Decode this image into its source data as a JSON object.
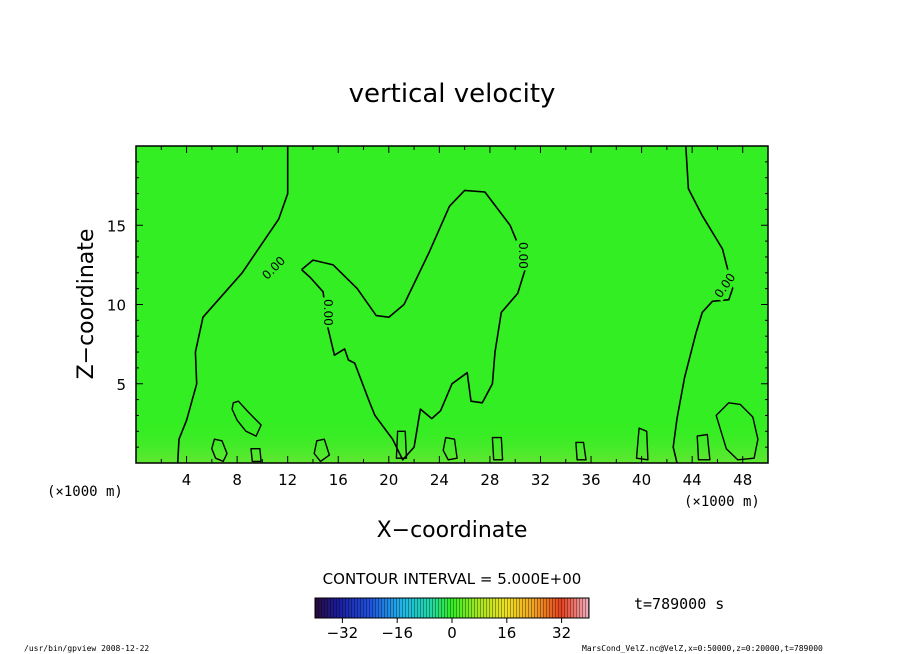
{
  "chart_data": {
    "type": "heatmap",
    "title": "vertical velocity",
    "xlabel": "X−coordinate",
    "ylabel": "Z−coordinate",
    "x_unit": "(×1000 m)",
    "x_unit_right": "(×1000 m)",
    "xlim": [
      0,
      50
    ],
    "ylim": [
      0,
      20
    ],
    "x_ticks": [
      "4",
      "8",
      "12",
      "16",
      "20",
      "24",
      "28",
      "32",
      "36",
      "40",
      "44",
      "48"
    ],
    "x_tick_values": [
      4,
      8,
      12,
      16,
      20,
      24,
      28,
      32,
      36,
      40,
      44,
      48
    ],
    "y_ticks": [
      "5",
      "10",
      "15"
    ],
    "y_tick_values": [
      5,
      10,
      15
    ],
    "contour_interval_text": "CONTOUR INTERVAL = 5.000E+00",
    "contour_level": 0,
    "contour_labels": [
      "0.00",
      "0.00",
      "0.00",
      "0.00"
    ],
    "field_value_dominant": 0,
    "colorbar": {
      "min": -40,
      "max": 40,
      "ticks": [
        "−32",
        "−16",
        "0",
        "16",
        "32"
      ],
      "tick_values": [
        -32,
        -16,
        0,
        16,
        32
      ]
    },
    "contours": [
      [
        [
          12.0,
          20.0
        ],
        [
          12.0,
          17.0
        ],
        [
          11.3,
          15.4
        ],
        [
          8.4,
          12.0
        ],
        [
          5.3,
          9.2
        ],
        [
          4.7,
          7.0
        ],
        [
          4.8,
          5.0
        ],
        [
          4.0,
          2.7
        ],
        [
          3.4,
          1.5
        ],
        [
          3.3,
          0.0
        ]
      ],
      [
        [
          13.1,
          12.2
        ],
        [
          14.0,
          12.8
        ],
        [
          15.6,
          12.5
        ],
        [
          17.5,
          11.0
        ],
        [
          19.0,
          9.3
        ],
        [
          20.0,
          9.2
        ],
        [
          21.2,
          10.0
        ],
        [
          23.2,
          13.3
        ],
        [
          24.8,
          16.2
        ],
        [
          26.0,
          17.2
        ],
        [
          27.6,
          17.1
        ],
        [
          29.6,
          15.0
        ],
        [
          30.9,
          12.5
        ],
        [
          30.2,
          10.7
        ],
        [
          28.9,
          9.5
        ],
        [
          28.4,
          7.0
        ],
        [
          28.2,
          5.0
        ],
        [
          27.4,
          3.8
        ],
        [
          26.5,
          3.9
        ],
        [
          26.2,
          5.7
        ],
        [
          25.0,
          5.0
        ],
        [
          24.1,
          3.3
        ],
        [
          23.4,
          2.8
        ],
        [
          22.5,
          3.4
        ],
        [
          22.0,
          1.0
        ],
        [
          21.1,
          0.2
        ],
        [
          20.3,
          1.5
        ],
        [
          18.9,
          3.0
        ],
        [
          18.5,
          3.8
        ],
        [
          17.3,
          6.3
        ],
        [
          16.8,
          6.5
        ],
        [
          16.5,
          7.2
        ],
        [
          15.7,
          6.8
        ],
        [
          15.1,
          8.8
        ],
        [
          14.8,
          10.8
        ],
        [
          13.8,
          11.7
        ],
        [
          13.1,
          12.2
        ]
      ],
      [
        [
          43.5,
          20.0
        ],
        [
          43.7,
          17.3
        ],
        [
          44.8,
          15.6
        ],
        [
          46.4,
          13.5
        ],
        [
          47.2,
          11.0
        ],
        [
          46.9,
          10.3
        ],
        [
          45.6,
          10.2
        ],
        [
          44.8,
          9.5
        ],
        [
          44.3,
          8.2
        ],
        [
          43.4,
          5.4
        ],
        [
          42.8,
          2.8
        ],
        [
          42.5,
          1.0
        ],
        [
          42.8,
          0.0
        ]
      ]
    ],
    "closed_cells": [
      [
        [
          7.7,
          3.8
        ],
        [
          8.1,
          3.9
        ],
        [
          8.9,
          3.2
        ],
        [
          9.9,
          2.4
        ],
        [
          9.5,
          1.7
        ],
        [
          8.7,
          2.0
        ],
        [
          8.0,
          2.7
        ],
        [
          7.6,
          3.4
        ]
      ],
      [
        [
          6.2,
          1.5
        ],
        [
          6.8,
          1.4
        ],
        [
          7.2,
          0.6
        ],
        [
          6.9,
          0.1
        ],
        [
          6.3,
          0.3
        ],
        [
          6.0,
          0.9
        ]
      ],
      [
        [
          9.1,
          0.9
        ],
        [
          9.8,
          0.9
        ],
        [
          9.9,
          0.1
        ],
        [
          9.2,
          0.1
        ]
      ],
      [
        [
          14.3,
          1.4
        ],
        [
          14.9,
          1.5
        ],
        [
          15.3,
          0.5
        ],
        [
          14.6,
          0.1
        ],
        [
          14.1,
          0.6
        ]
      ],
      [
        [
          20.7,
          2.0
        ],
        [
          21.3,
          2.0
        ],
        [
          21.4,
          0.3
        ],
        [
          20.6,
          0.3
        ]
      ],
      [
        [
          24.5,
          1.6
        ],
        [
          25.2,
          1.5
        ],
        [
          25.4,
          0.3
        ],
        [
          24.7,
          0.2
        ],
        [
          24.3,
          0.8
        ]
      ],
      [
        [
          28.2,
          1.6
        ],
        [
          28.9,
          1.6
        ],
        [
          29.0,
          0.2
        ],
        [
          28.3,
          0.2
        ]
      ],
      [
        [
          34.8,
          1.3
        ],
        [
          35.4,
          1.3
        ],
        [
          35.6,
          0.2
        ],
        [
          34.9,
          0.2
        ]
      ],
      [
        [
          39.8,
          2.2
        ],
        [
          40.4,
          2.0
        ],
        [
          40.5,
          0.2
        ],
        [
          39.6,
          0.3
        ]
      ],
      [
        [
          44.4,
          1.7
        ],
        [
          45.2,
          1.8
        ],
        [
          45.4,
          0.2
        ],
        [
          44.5,
          0.2
        ]
      ],
      [
        [
          45.9,
          3.0
        ],
        [
          46.9,
          3.8
        ],
        [
          47.8,
          3.7
        ],
        [
          48.8,
          2.9
        ],
        [
          49.2,
          1.5
        ],
        [
          48.9,
          0.3
        ],
        [
          47.6,
          0.2
        ],
        [
          46.7,
          0.9
        ]
      ]
    ]
  },
  "footer": {
    "left": "/usr/bin/gpview   2008-12-22",
    "right": "MarsCond_VelZ.nc@VelZ,x=0:50000,z=0:20000,t=789000"
  },
  "time_label": "t=789000 s",
  "colors": {
    "field": "#33ee22",
    "frame": "#000000",
    "contour": "#000000"
  }
}
